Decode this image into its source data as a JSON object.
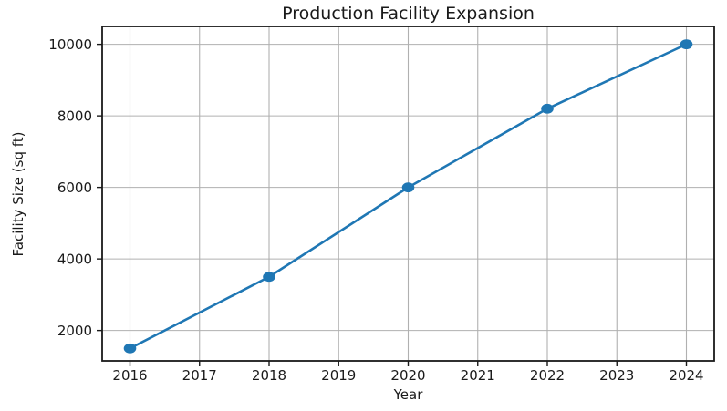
{
  "chart_data": {
    "type": "line",
    "title": "Production Facility Expansion",
    "xlabel": "Year",
    "ylabel": "Facility Size (sq ft)",
    "x": [
      2016,
      2018,
      2020,
      2022,
      2024
    ],
    "values": [
      1500,
      3500,
      6000,
      8200,
      10000
    ],
    "series": [
      {
        "name": "Facility Size (sq ft)",
        "values": [
          1500,
          3500,
          6000,
          8200,
          10000
        ]
      }
    ],
    "xticks": [
      2016,
      2017,
      2018,
      2019,
      2020,
      2021,
      2022,
      2023,
      2024
    ],
    "yticks": [
      2000,
      4000,
      6000,
      8000,
      10000
    ],
    "xlim": [
      2015.6,
      2024.4
    ],
    "ylim": [
      1150,
      10500
    ],
    "grid": true,
    "legend_position": "none",
    "marker": "o",
    "line_color": "#1f77b4",
    "marker_color": "#1f77b4",
    "grid_color": "#b0b0b0",
    "axis_color": "#1a1a1a",
    "text_color": "#1a1a1a",
    "background_color": "#ffffff",
    "tick_font_size": 15,
    "title_font_size": 19
  }
}
